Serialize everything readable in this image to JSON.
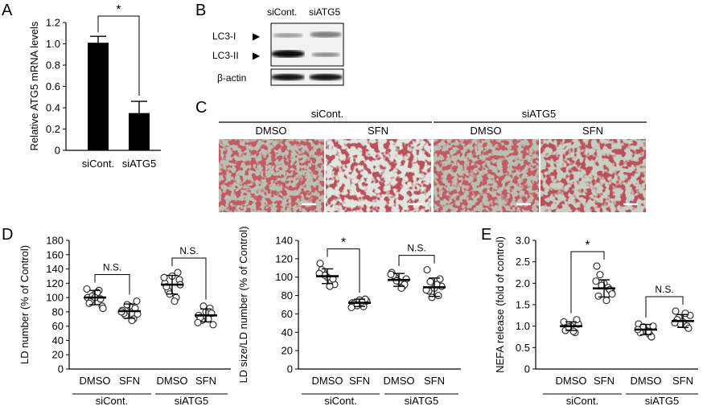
{
  "panel_labels": [
    "A",
    "B",
    "C",
    "D",
    "E"
  ],
  "chart_data": [
    {
      "id": "A",
      "type": "bar",
      "categories": [
        "siCont.",
        "siATG5"
      ],
      "values": [
        1.01,
        0.35
      ],
      "errors": [
        0.06,
        0.11
      ],
      "ylabel": "Relative ATG5 mRNA levels",
      "ylim": [
        0,
        1.2
      ],
      "yticks": [
        "0",
        "0.2",
        "0.4",
        "0.6",
        "0.8",
        "1.0",
        "1.2"
      ],
      "significance": "*",
      "bar_color": "#000000"
    },
    {
      "id": "D-left",
      "type": "scatter",
      "ylabel": "LD number (% of Control)",
      "ylim": [
        0,
        180
      ],
      "yticks": [
        "0",
        "20",
        "40",
        "60",
        "80",
        "100",
        "120",
        "140",
        "160",
        "180"
      ],
      "x_labels": [
        "DMSO",
        "SFN",
        "DMSO",
        "SFN"
      ],
      "groups": [
        "siCont.",
        "siATG5"
      ],
      "significance": [
        "N.S.",
        "N.S."
      ],
      "series": [
        {
          "means": 100,
          "sd": 10,
          "points": [
            100,
            95,
            105,
            110,
            88,
            92,
            98,
            102,
            107,
            112,
            85,
            100
          ]
        },
        {
          "means": 81,
          "sd": 10,
          "points": [
            82,
            75,
            88,
            70,
            95,
            78,
            85,
            90,
            68,
            80,
            77
          ]
        },
        {
          "means": 118,
          "sd": 13,
          "points": [
            120,
            110,
            130,
            100,
            125,
            115,
            135,
            105,
            95,
            128,
            118
          ]
        },
        {
          "means": 75,
          "sd": 9,
          "points": [
            75,
            68,
            80,
            85,
            62,
            72,
            78,
            88,
            70,
            65
          ]
        }
      ]
    },
    {
      "id": "D-right",
      "type": "scatter",
      "ylabel": "LD size/LD number (% of Control)",
      "ylim": [
        0,
        140
      ],
      "yticks": [
        "0",
        "20",
        "40",
        "60",
        "80",
        "100",
        "120",
        "140"
      ],
      "x_labels": [
        "DMSO",
        "SFN",
        "DMSO",
        "SFN"
      ],
      "groups": [
        "siCont.",
        "siATG5"
      ],
      "significance": [
        "*",
        "N.S."
      ],
      "series": [
        {
          "means": 101,
          "sd": 8,
          "points": [
            115,
            105,
            100,
            95,
            92,
            108,
            98,
            102,
            90,
            104
          ]
        },
        {
          "means": 72,
          "sd": 4,
          "points": [
            72,
            70,
            75,
            68,
            74,
            71,
            76,
            69,
            73,
            67
          ]
        },
        {
          "means": 97,
          "sd": 7,
          "points": [
            105,
            100,
            95,
            90,
            98,
            102,
            92,
            96,
            88,
            103
          ]
        },
        {
          "means": 89,
          "sd": 10,
          "points": [
            108,
            95,
            88,
            80,
            90,
            85,
            98,
            78,
            92,
            86
          ]
        }
      ]
    },
    {
      "id": "E",
      "type": "scatter",
      "ylabel": "NEFA release (fold of control)",
      "ylim": [
        0,
        3.0
      ],
      "yticks": [
        "0",
        "0.5",
        "1.0",
        "1.5",
        "2.0",
        "2.5",
        "3.0"
      ],
      "x_labels": [
        "DMSO",
        "SFN",
        "DMSO",
        "SFN"
      ],
      "groups": [
        "siCont.",
        "siATG5"
      ],
      "significance": [
        "*",
        "N.S."
      ],
      "series": [
        {
          "means": 1.0,
          "sd": 0.1,
          "points": [
            1.1,
            0.95,
            1.0,
            0.85,
            1.05,
            0.9,
            1.15,
            0.98,
            0.88
          ]
        },
        {
          "means": 1.88,
          "sd": 0.2,
          "points": [
            2.4,
            2.2,
            2.0,
            1.9,
            1.8,
            1.7,
            1.85,
            1.95,
            1.6,
            2.05,
            1.75
          ]
        },
        {
          "means": 0.92,
          "sd": 0.12,
          "points": [
            1.05,
            0.95,
            0.9,
            0.8,
            1.0,
            0.85,
            0.75,
            0.98,
            0.88,
            0.92
          ]
        },
        {
          "means": 1.12,
          "sd": 0.15,
          "points": [
            1.35,
            1.2,
            1.1,
            1.0,
            1.25,
            1.15,
            0.95,
            1.05,
            1.3,
            1.08
          ]
        }
      ]
    }
  ],
  "panelB": {
    "lanes": [
      "siCont.",
      "siATG5"
    ],
    "rows": [
      "LC3-I",
      "LC3-II",
      "β-actin"
    ],
    "arrow": "▶"
  },
  "panelC": {
    "groups": [
      "siCont.",
      "siATG5"
    ],
    "treatments": [
      "DMSO",
      "SFN",
      "DMSO",
      "SFN"
    ]
  }
}
